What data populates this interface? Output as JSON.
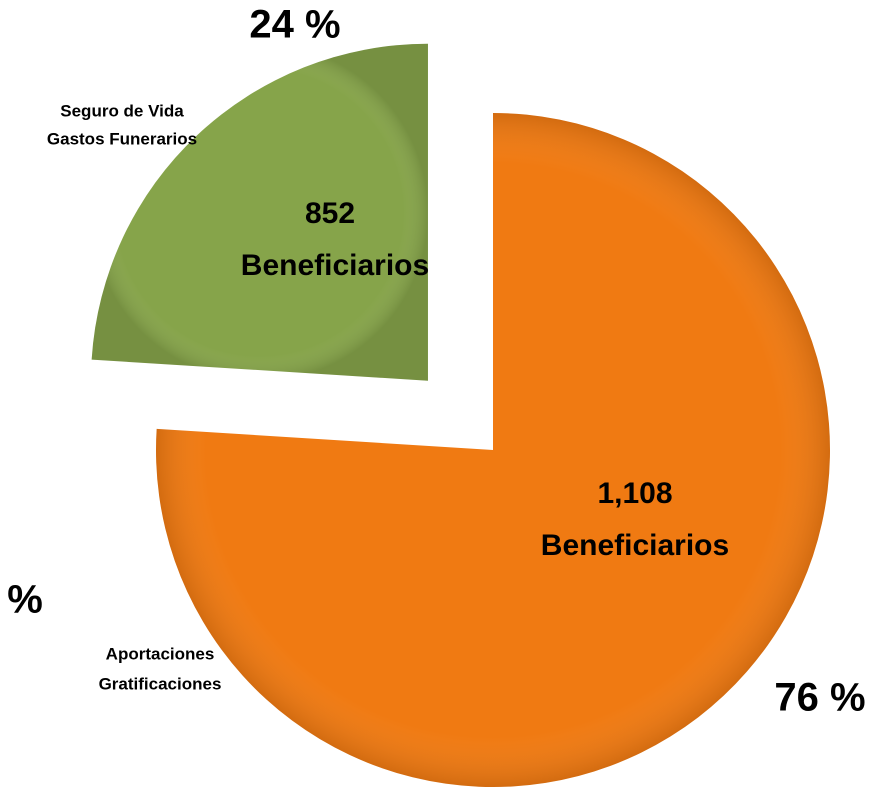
{
  "chart_data": {
    "type": "pie",
    "categories": [
      [
        "Aportaciones",
        "Gratificaciones"
      ],
      [
        "Seguro de Vida",
        "Gastos Funerarios"
      ]
    ],
    "values": [
      76,
      24
    ],
    "value_labels": [
      "76 %",
      "24 %"
    ],
    "counts": [
      1108,
      852
    ],
    "count_labels": [
      "1,108",
      "852"
    ],
    "count_unit": "Beneficiarios",
    "colors": [
      "#f07a12",
      "#86a44a"
    ],
    "explode": [
      false,
      true
    ],
    "annotation": "%"
  }
}
